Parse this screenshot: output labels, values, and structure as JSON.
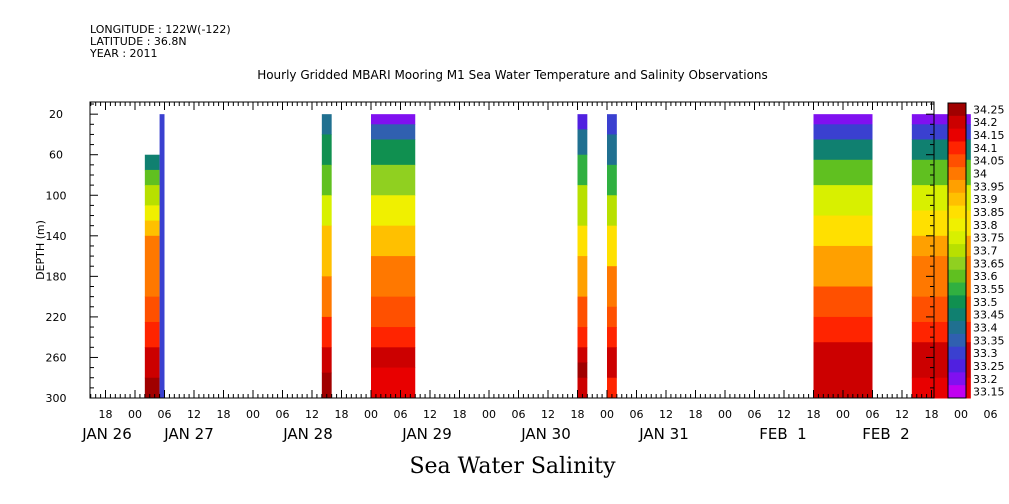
{
  "header": {
    "longitude": "LONGITUDE : 122W(-122)",
    "latitude": "LATITUDE : 36.8N",
    "year": "YEAR : 2011"
  },
  "chart_data": {
    "type": "heatmap",
    "title": "Hourly Gridded MBARI Mooring M1 Sea Water Temperature and Salinity Observations",
    "caption": "Sea Water Salinity",
    "ylabel": "DEPTH (m)",
    "ylim": [
      300,
      8
    ],
    "y_ticks": [
      20,
      60,
      100,
      140,
      180,
      220,
      260,
      300
    ],
    "x_hour_ticks": [
      "18",
      "00",
      "06",
      "12",
      "18",
      "00",
      "06",
      "12",
      "18",
      "00",
      "06",
      "12",
      "18",
      "00",
      "06",
      "12",
      "18",
      "00",
      "06",
      "12",
      "18",
      "00",
      "06",
      "12",
      "18",
      "00",
      "06",
      "12",
      "18",
      "00",
      "06",
      "12"
    ],
    "x_date_labels": [
      "JAN 26",
      "JAN 27",
      "JAN 28",
      "JAN 29",
      "JAN 30",
      "JAN 31",
      "FEB  1",
      "FEB  2"
    ],
    "colorbar": {
      "levels": [
        "34.25",
        "34.2",
        "34.15",
        "34.1",
        "34.05",
        "34",
        "33.95",
        "33.9",
        "33.85",
        "33.8",
        "33.75",
        "33.7",
        "33.65",
        "33.6",
        "33.55",
        "33.5",
        "33.45",
        "33.4",
        "33.35",
        "33.3",
        "33.25",
        "33.2",
        "33.15"
      ],
      "colors": [
        "#a00000",
        "#cc0000",
        "#e80000",
        "#ff2400",
        "#ff5000",
        "#ff7800",
        "#ffa000",
        "#ffc000",
        "#ffe000",
        "#f0f000",
        "#d8f000",
        "#b8e000",
        "#90d020",
        "#60c020",
        "#30b040",
        "#109050",
        "#108070",
        "#207090",
        "#3060b0",
        "#3a40d0",
        "#5020e0",
        "#8010f0",
        "#c000f0"
      ]
    },
    "segments": [
      {
        "start": "JAN 26 02:00",
        "end": "JAN 26 05:00",
        "top_depth": 60,
        "profile": [
          [
            60,
            "33.45"
          ],
          [
            75,
            "33.6"
          ],
          [
            90,
            "33.7"
          ],
          [
            110,
            "33.8"
          ],
          [
            125,
            "33.9"
          ],
          [
            140,
            "34"
          ],
          [
            200,
            "34.05"
          ],
          [
            225,
            "34.1"
          ],
          [
            250,
            "34.2"
          ],
          [
            280,
            "34.25"
          ],
          [
            300,
            "34.2"
          ]
        ]
      },
      {
        "start": "JAN 26 05:00",
        "end": "JAN 26 06:00",
        "top_depth": 20,
        "profile": [
          [
            20,
            "33.3"
          ],
          [
            300,
            "33.3"
          ]
        ]
      },
      {
        "start": "JAN 27 14:00",
        "end": "JAN 27 16:00",
        "top_depth": 20,
        "profile": [
          [
            20,
            "33.4"
          ],
          [
            40,
            "33.5"
          ],
          [
            70,
            "33.6"
          ],
          [
            100,
            "33.75"
          ],
          [
            130,
            "33.9"
          ],
          [
            180,
            "34"
          ],
          [
            220,
            "34.1"
          ],
          [
            250,
            "34.2"
          ],
          [
            275,
            "34.25"
          ],
          [
            300,
            "34.2"
          ]
        ]
      },
      {
        "start": "JAN 28 00:00",
        "end": "JAN 28 09:00",
        "top_depth": 20,
        "profile": [
          [
            20,
            "33.2"
          ],
          [
            30,
            "33.35"
          ],
          [
            45,
            "33.5"
          ],
          [
            70,
            "33.65"
          ],
          [
            100,
            "33.8"
          ],
          [
            130,
            "33.9"
          ],
          [
            160,
            "34"
          ],
          [
            200,
            "34.05"
          ],
          [
            230,
            "34.1"
          ],
          [
            250,
            "34.2"
          ],
          [
            270,
            "34.15"
          ],
          [
            300,
            "34.1"
          ]
        ]
      },
      {
        "start": "JAN 29 18:00",
        "end": "JAN 29 20:00",
        "top_depth": 20,
        "profile": [
          [
            20,
            "33.25"
          ],
          [
            35,
            "33.4"
          ],
          [
            60,
            "33.55"
          ],
          [
            90,
            "33.7"
          ],
          [
            130,
            "33.85"
          ],
          [
            160,
            "33.95"
          ],
          [
            200,
            "34.05"
          ],
          [
            230,
            "34.1"
          ],
          [
            250,
            "34.2"
          ],
          [
            265,
            "34.25"
          ],
          [
            280,
            "34.2"
          ],
          [
            300,
            "34.1"
          ]
        ]
      },
      {
        "start": "JAN 30 00:00",
        "end": "JAN 30 02:00",
        "top_depth": 20,
        "profile": [
          [
            20,
            "33.3"
          ],
          [
            40,
            "33.4"
          ],
          [
            70,
            "33.55"
          ],
          [
            100,
            "33.7"
          ],
          [
            130,
            "33.85"
          ],
          [
            170,
            "34"
          ],
          [
            210,
            "34.05"
          ],
          [
            230,
            "34.1"
          ],
          [
            250,
            "34.2"
          ],
          [
            280,
            "34.1"
          ],
          [
            300,
            "34.1"
          ]
        ]
      },
      {
        "start": "JAN 31 18:00",
        "end": "FEB 1 06:00",
        "top_depth": 20,
        "profile": [
          [
            20,
            "33.2"
          ],
          [
            30,
            "33.3"
          ],
          [
            45,
            "33.45"
          ],
          [
            65,
            "33.6"
          ],
          [
            90,
            "33.75"
          ],
          [
            120,
            "33.85"
          ],
          [
            150,
            "33.95"
          ],
          [
            190,
            "34.05"
          ],
          [
            220,
            "34.1"
          ],
          [
            245,
            "34.2"
          ],
          [
            280,
            "34.2"
          ],
          [
            300,
            "34.1"
          ]
        ]
      },
      {
        "start": "FEB 1 14:00",
        "end": "FEB 2 02:00",
        "top_depth": 20,
        "profile": [
          [
            20,
            "33.2"
          ],
          [
            30,
            "33.3"
          ],
          [
            45,
            "33.45"
          ],
          [
            65,
            "33.6"
          ],
          [
            90,
            "33.75"
          ],
          [
            115,
            "33.85"
          ],
          [
            140,
            "33.95"
          ],
          [
            160,
            "34"
          ],
          [
            200,
            "34.05"
          ],
          [
            225,
            "34.1"
          ],
          [
            245,
            "34.2"
          ],
          [
            280,
            "34.15"
          ],
          [
            300,
            "34.1"
          ]
        ]
      }
    ]
  }
}
